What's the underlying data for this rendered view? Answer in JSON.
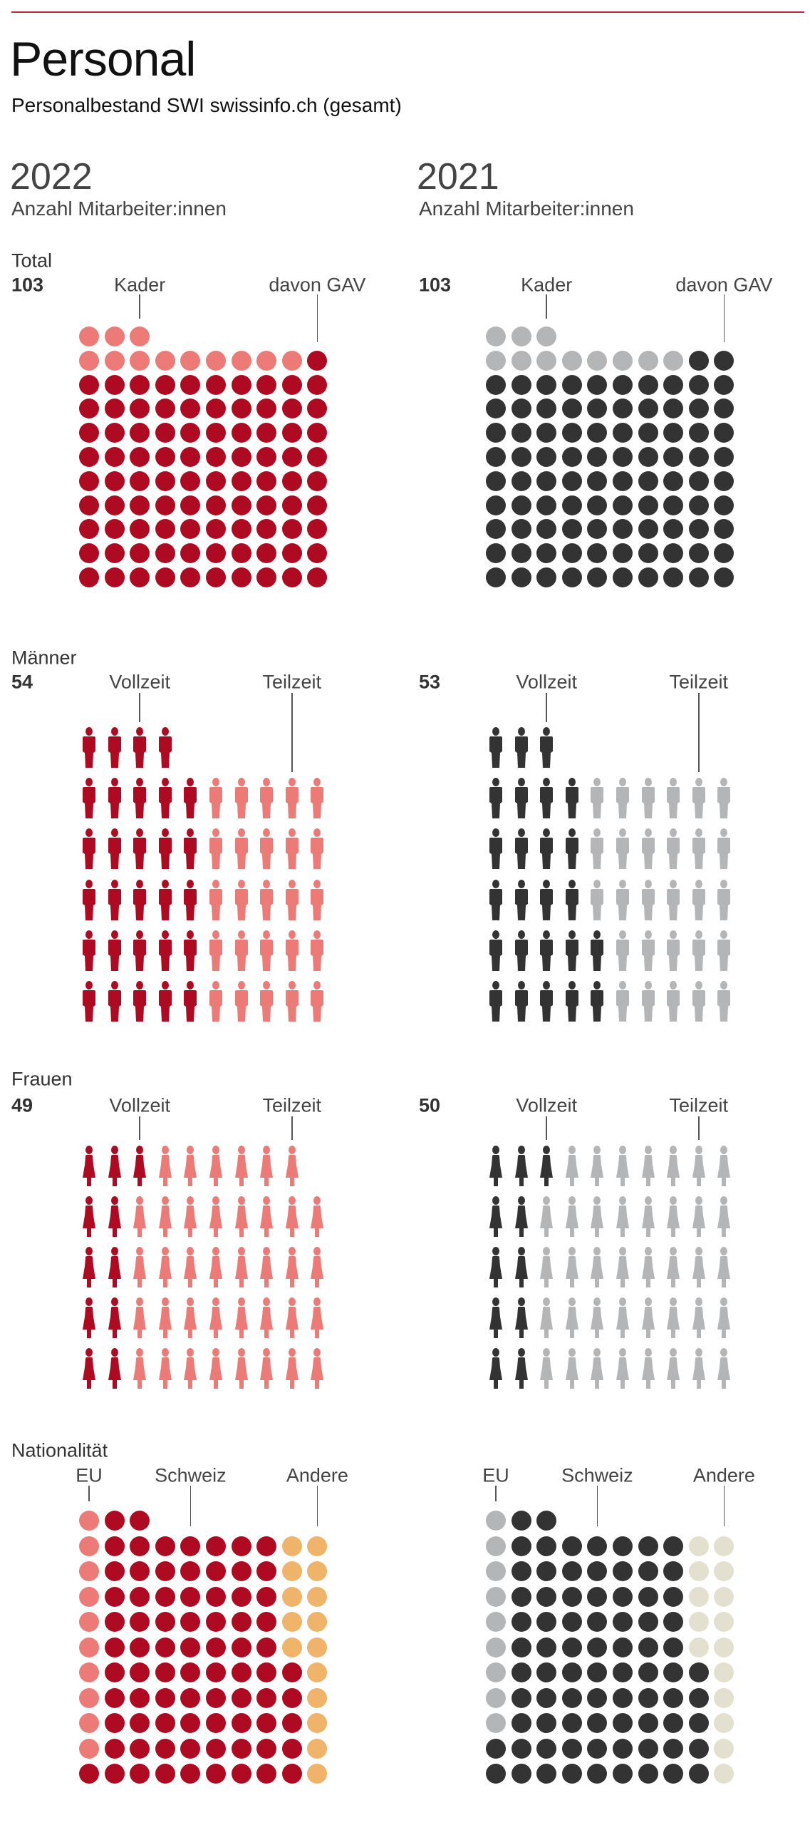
{
  "header": {
    "title": "Personal",
    "subtitle": "Personalbestand SWI swissinfo.ch (gesamt)"
  },
  "columns": [
    {
      "year": "2022",
      "sub": "Anzahl Mitarbeiter:innen"
    },
    {
      "year": "2021",
      "sub": "Anzahl Mitarbeiter:innen"
    }
  ],
  "colors": {
    "accent_dark": "#ae0a21",
    "accent_light": "#ec7b77",
    "dark": "#333333",
    "gray": "#b4b5b6",
    "orange": "#efb36a",
    "beige": "#e3e0cf",
    "rule": "#c1263b"
  },
  "chart_data": [
    {
      "type": "waffle",
      "title": "Total",
      "icon": "dot-icon",
      "annotations": [
        "Kader",
        "davon GAV"
      ],
      "panels": [
        {
          "year": "2022",
          "total": "103",
          "segments": [
            {
              "name": "Kader",
              "value": 12,
              "color": "#ec7b77"
            },
            {
              "name": "davon GAV",
              "value": 91,
              "color": "#ae0a21"
            }
          ],
          "rows": [
            [
              3,
              0
            ],
            [
              9,
              1
            ],
            [
              0,
              10
            ],
            [
              0,
              10
            ],
            [
              0,
              10
            ],
            [
              0,
              10
            ],
            [
              0,
              10
            ],
            [
              0,
              10
            ],
            [
              0,
              10
            ],
            [
              0,
              10
            ],
            [
              0,
              10
            ]
          ]
        },
        {
          "year": "2021",
          "total": "103",
          "segments": [
            {
              "name": "Kader",
              "value": 11,
              "color": "#b4b5b6"
            },
            {
              "name": "davon GAV",
              "value": 92,
              "color": "#333333"
            }
          ],
          "rows": [
            [
              3,
              0
            ],
            [
              8,
              2
            ],
            [
              0,
              10
            ],
            [
              0,
              10
            ],
            [
              0,
              10
            ],
            [
              0,
              10
            ],
            [
              0,
              10
            ],
            [
              0,
              10
            ],
            [
              0,
              10
            ],
            [
              0,
              10
            ],
            [
              0,
              10
            ]
          ]
        }
      ]
    },
    {
      "type": "waffle",
      "title": "Männer",
      "icon": "man-icon",
      "annotations": [
        "Vollzeit",
        "Teilzeit"
      ],
      "panels": [
        {
          "year": "2022",
          "total": "54",
          "segments": [
            {
              "name": "Vollzeit",
              "value": 29,
              "color": "#ae0a21"
            },
            {
              "name": "Teilzeit",
              "value": 25,
              "color": "#ec7b77"
            }
          ],
          "rows": [
            [
              4,
              0
            ],
            [
              5,
              5
            ],
            [
              5,
              5
            ],
            [
              5,
              5
            ],
            [
              5,
              5
            ],
            [
              5,
              5
            ]
          ]
        },
        {
          "year": "2021",
          "total": "53",
          "segments": [
            {
              "name": "Vollzeit",
              "value": 25,
              "color": "#333333"
            },
            {
              "name": "Teilzeit",
              "value": 28,
              "color": "#b4b5b6"
            }
          ],
          "rows": [
            [
              3,
              0
            ],
            [
              4,
              6
            ],
            [
              4,
              6
            ],
            [
              4,
              6
            ],
            [
              5,
              5
            ],
            [
              5,
              5
            ]
          ]
        }
      ]
    },
    {
      "type": "waffle",
      "title": "Frauen",
      "icon": "woman-icon",
      "annotations": [
        "Vollzeit",
        "Teilzeit"
      ],
      "panels": [
        {
          "year": "2022",
          "total": "49",
          "segments": [
            {
              "name": "Vollzeit",
              "value": 11,
              "color": "#ae0a21"
            },
            {
              "name": "Teilzeit",
              "value": 38,
              "color": "#ec7b77"
            }
          ],
          "rows": [
            [
              3,
              6
            ],
            [
              2,
              8
            ],
            [
              2,
              8
            ],
            [
              2,
              8
            ],
            [
              2,
              8
            ]
          ]
        },
        {
          "year": "2021",
          "total": "50",
          "segments": [
            {
              "name": "Vollzeit",
              "value": 11,
              "color": "#333333"
            },
            {
              "name": "Teilzeit",
              "value": 39,
              "color": "#b4b5b6"
            }
          ],
          "rows": [
            [
              3,
              7
            ],
            [
              2,
              8
            ],
            [
              2,
              8
            ],
            [
              2,
              8
            ],
            [
              2,
              8
            ]
          ]
        }
      ]
    },
    {
      "type": "waffle",
      "title": "Nationalität",
      "icon": "dot-icon",
      "annotations": [
        "EU",
        "Schweiz",
        "Andere"
      ],
      "panels": [
        {
          "year": "2022",
          "segments": [
            {
              "name": "EU",
              "value": 10,
              "color": "#ec7b77"
            },
            {
              "name": "Schweiz",
              "value": 78,
              "color": "#ae0a21"
            },
            {
              "name": "Andere",
              "value": 15,
              "color": "#efb36a"
            }
          ],
          "rows": [
            [
              1,
              2,
              0
            ],
            [
              1,
              7,
              2
            ],
            [
              1,
              7,
              2
            ],
            [
              1,
              7,
              2
            ],
            [
              1,
              7,
              2
            ],
            [
              1,
              7,
              2
            ],
            [
              1,
              8,
              1
            ],
            [
              1,
              8,
              1
            ],
            [
              1,
              8,
              1
            ],
            [
              1,
              8,
              1
            ],
            [
              0,
              9,
              1
            ]
          ]
        },
        {
          "year": "2021",
          "segments": [
            {
              "name": "EU",
              "value": 9,
              "color": "#b4b5b6"
            },
            {
              "name": "Schweiz",
              "value": 79,
              "color": "#333333"
            },
            {
              "name": "Andere",
              "value": 15,
              "color": "#e3e0cf"
            }
          ],
          "rows": [
            [
              1,
              2,
              0
            ],
            [
              1,
              7,
              2
            ],
            [
              1,
              7,
              2
            ],
            [
              1,
              7,
              2
            ],
            [
              1,
              7,
              2
            ],
            [
              1,
              7,
              2
            ],
            [
              1,
              8,
              1
            ],
            [
              1,
              8,
              1
            ],
            [
              1,
              8,
              1
            ],
            [
              0,
              9,
              1
            ],
            [
              0,
              9,
              1
            ]
          ]
        }
      ]
    }
  ]
}
